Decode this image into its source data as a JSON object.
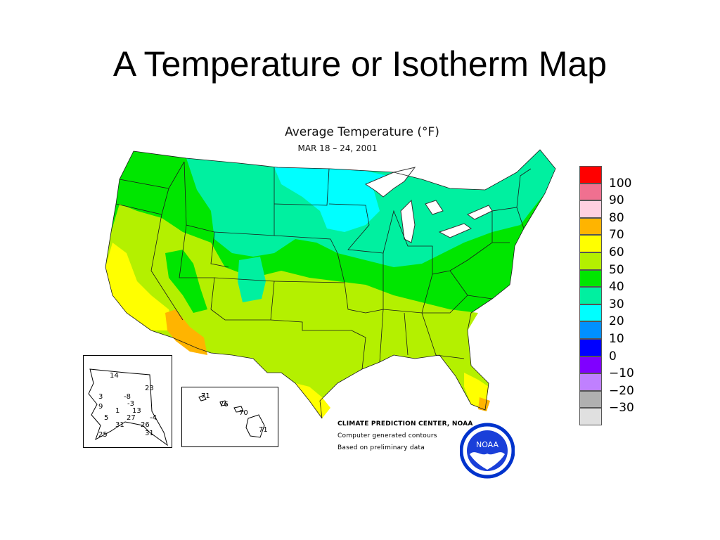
{
  "slide": {
    "title": "A Temperature or Isotherm Map"
  },
  "map": {
    "title": "Average Temperature (°F)",
    "subtitle": "MAR 18 – 24, 2001",
    "credits": [
      "CLIMATE PREDICTION CENTER, NOAA",
      "Computer generated contours",
      "Based on preliminary data"
    ],
    "logo_text": "NOAA"
  },
  "legend": {
    "items": [
      {
        "label": "100",
        "color": "#ff0000"
      },
      {
        "label": "90",
        "color": "#f07090"
      },
      {
        "label": "80",
        "color": "#ffd0e0"
      },
      {
        "label": "70",
        "color": "#ffb400"
      },
      {
        "label": "60",
        "color": "#ffff00"
      },
      {
        "label": "50",
        "color": "#b4f000"
      },
      {
        "label": "40",
        "color": "#00e600"
      },
      {
        "label": "30",
        "color": "#00f0a0"
      },
      {
        "label": "20",
        "color": "#00ffff"
      },
      {
        "label": "10",
        "color": "#0090ff"
      },
      {
        "label": "0",
        "color": "#0000ff"
      },
      {
        "label": "−10",
        "color": "#8000ff"
      },
      {
        "label": "−20",
        "color": "#c080ff"
      },
      {
        "label": "−30",
        "color": "#b0b0b0"
      },
      {
        "label": "",
        "color": "#e0e0e0"
      }
    ]
  },
  "alaska_values": [
    "14",
    "23",
    "3",
    "-8",
    "-3",
    "9",
    "1",
    "13",
    "5",
    "27",
    "-4",
    "31",
    "26",
    "25",
    "31"
  ],
  "hawaii_values": [
    "71",
    "76",
    "70",
    "71"
  ]
}
